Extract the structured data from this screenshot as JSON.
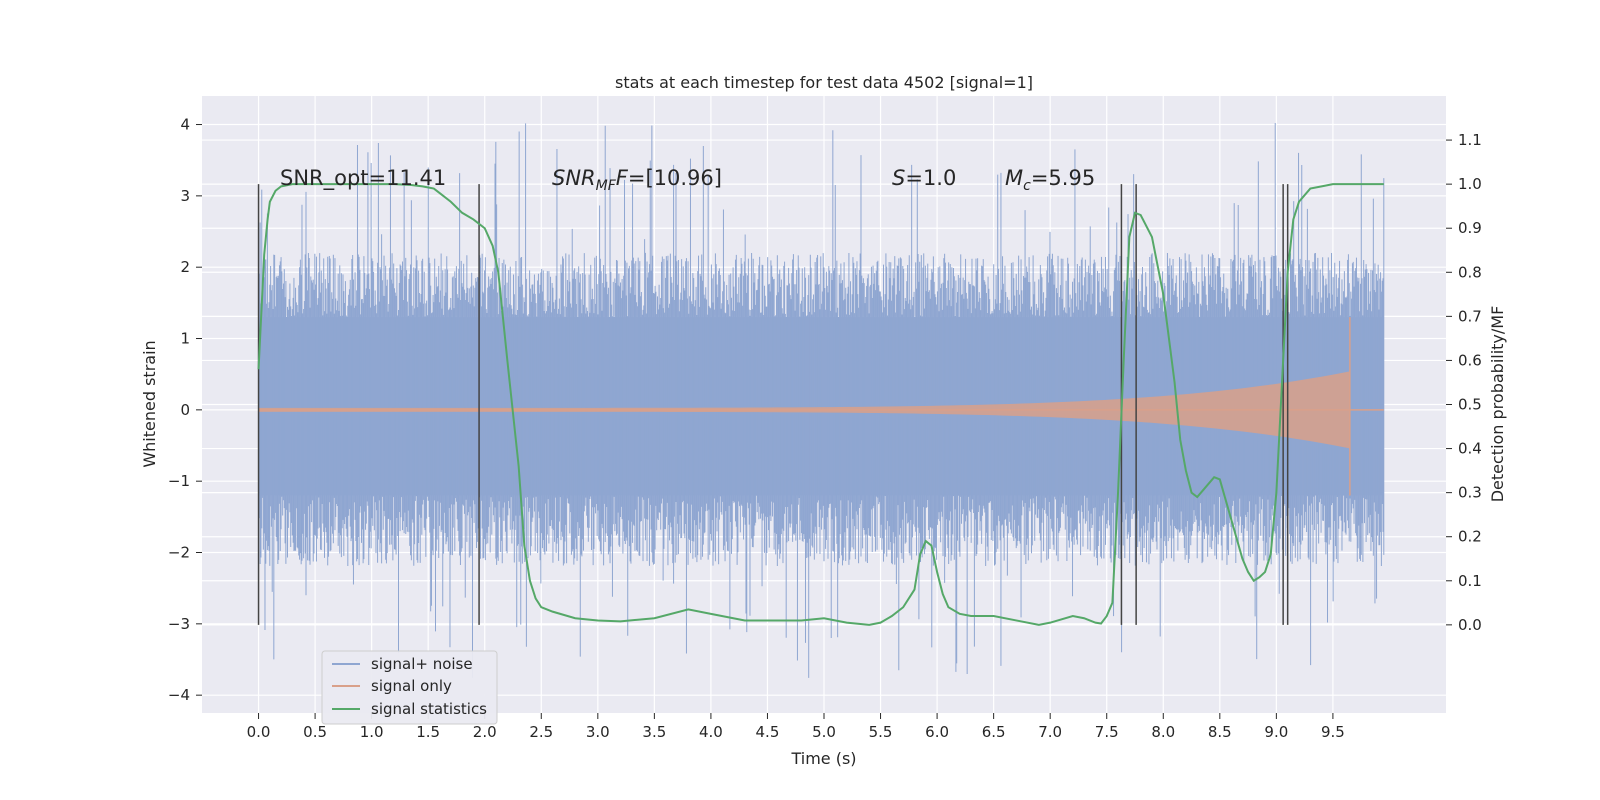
{
  "chart_data": {
    "type": "line",
    "title": "stats at each timestep for test data 4502 [signal=1]",
    "xlabel": "Time (s)",
    "ylabel": "Whitened strain",
    "ylabel_right": "Detection probability/MF",
    "xlim": [
      -0.5,
      10.5
    ],
    "ylim": [
      -4.25,
      4.4
    ],
    "ylim_right": [
      -0.2,
      1.2
    ],
    "x_ticks": [
      "0.0",
      "0.5",
      "1.0",
      "1.5",
      "2.0",
      "2.5",
      "3.0",
      "3.5",
      "4.0",
      "4.5",
      "5.0",
      "5.5",
      "6.0",
      "6.5",
      "7.0",
      "7.5",
      "8.0",
      "8.5",
      "9.0",
      "9.5"
    ],
    "y_ticks": [
      "−4",
      "−3",
      "−2",
      "−1",
      "0",
      "1",
      "2",
      "3",
      "4"
    ],
    "y_right_ticks": [
      "0.0",
      "0.1",
      "0.2",
      "0.3",
      "0.4",
      "0.5",
      "0.6",
      "0.7",
      "0.8",
      "0.9",
      "1.0",
      "1.1"
    ],
    "grid": true,
    "legend_placement": "lower-left",
    "annotations": {
      "snr_opt": "SNR_opt=11.41",
      "snr_mf_main": "SNR",
      "snr_mf_sub": "MF",
      "snr_mf_rest": "=[10.96]",
      "s_main": "S",
      "s_rest": "=1.0",
      "mc_main": "M",
      "mc_sub": "c",
      "mc_rest": "=5.95"
    },
    "series": [
      {
        "name": "signal+ noise",
        "color": "#8fa6d1",
        "description_of_values": "noise band",
        "band_inner": [
          -1.2,
          1.3
        ],
        "band_typical": [
          -2.3,
          2.3
        ],
        "band_extreme": [
          -3.8,
          4.05
        ]
      },
      {
        "name": "signal only",
        "color": "#d9a08a",
        "chirp": {
          "start": 0.0,
          "end": 9.65,
          "start_amplitude": 0.02,
          "end_amplitude": 1.3
        }
      },
      {
        "name": "signal statistics",
        "color": "#55a868",
        "axis": "right",
        "x": [
          0.0,
          0.05,
          0.08,
          0.1,
          0.15,
          0.2,
          0.3,
          0.5,
          0.8,
          1.0,
          1.2,
          1.35,
          1.45,
          1.55,
          1.6,
          1.7,
          1.8,
          1.9,
          2.0,
          2.07,
          2.12,
          2.2,
          2.25,
          2.3,
          2.35,
          2.4,
          2.45,
          2.5,
          2.6,
          2.8,
          3.0,
          3.2,
          3.5,
          3.8,
          4.0,
          4.3,
          4.6,
          4.8,
          5.0,
          5.2,
          5.4,
          5.5,
          5.6,
          5.7,
          5.8,
          5.85,
          5.9,
          5.95,
          6.0,
          6.05,
          6.1,
          6.2,
          6.3,
          6.5,
          6.7,
          6.9,
          7.0,
          7.2,
          7.3,
          7.4,
          7.45,
          7.5,
          7.55,
          7.6,
          7.65,
          7.7,
          7.75,
          7.8,
          7.9,
          8.0,
          8.1,
          8.15,
          8.2,
          8.25,
          8.3,
          8.35,
          8.4,
          8.45,
          8.5,
          8.6,
          8.7,
          8.75,
          8.8,
          8.85,
          8.9,
          8.95,
          9.0,
          9.05,
          9.1,
          9.15,
          9.2,
          9.3,
          9.4,
          9.5,
          9.6,
          9.7,
          9.8,
          9.9,
          9.95
        ],
        "y": [
          0.58,
          0.84,
          0.92,
          0.96,
          0.985,
          0.995,
          1.0,
          1.0,
          1.0,
          1.0,
          1.0,
          0.998,
          0.995,
          0.99,
          0.98,
          0.96,
          0.935,
          0.92,
          0.9,
          0.86,
          0.8,
          0.6,
          0.48,
          0.36,
          0.18,
          0.1,
          0.06,
          0.04,
          0.03,
          0.015,
          0.01,
          0.008,
          0.015,
          0.035,
          0.025,
          0.01,
          0.01,
          0.01,
          0.015,
          0.005,
          0.0,
          0.005,
          0.02,
          0.04,
          0.08,
          0.16,
          0.19,
          0.18,
          0.12,
          0.07,
          0.04,
          0.025,
          0.02,
          0.02,
          0.01,
          0.0,
          0.005,
          0.02,
          0.015,
          0.005,
          0.003,
          0.02,
          0.05,
          0.3,
          0.6,
          0.88,
          0.935,
          0.93,
          0.88,
          0.75,
          0.55,
          0.42,
          0.35,
          0.3,
          0.29,
          0.305,
          0.32,
          0.335,
          0.33,
          0.24,
          0.15,
          0.12,
          0.1,
          0.108,
          0.12,
          0.16,
          0.3,
          0.55,
          0.8,
          0.92,
          0.96,
          0.99,
          0.995,
          1.0,
          1.0,
          1.0,
          1.0,
          1.0,
          1.0
        ]
      }
    ],
    "vertical_markers": [
      0.0,
      1.95,
      7.63,
      7.76,
      9.06,
      9.1
    ]
  }
}
